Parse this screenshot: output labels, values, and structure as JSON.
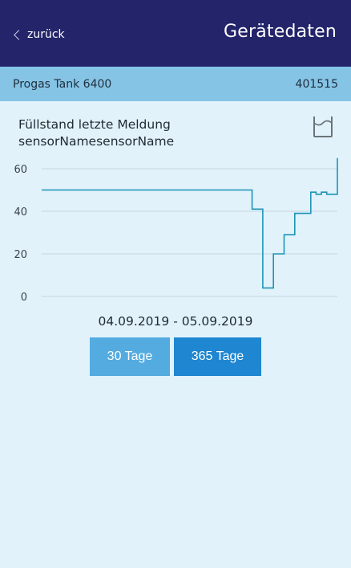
{
  "header": {
    "back_label": "zurück",
    "title": "Gerätedaten"
  },
  "device": {
    "name": "Progas Tank 6400",
    "id": "401515"
  },
  "chart_section": {
    "heading_line1": "Füllstand letzte Meldung",
    "heading_line2": "sensorNamesensorName",
    "icon": "tank-level-icon"
  },
  "chart_data": {
    "type": "line",
    "title": "",
    "xlabel": "",
    "ylabel": "",
    "ylim": [
      0,
      60
    ],
    "y_ticks": [
      "0",
      "20",
      "40",
      "60"
    ],
    "grid": true,
    "legend": "none",
    "color": "#1e93b8",
    "series": [
      {
        "values": [
          50,
          50,
          50,
          50,
          50,
          50,
          50,
          50,
          50,
          50,
          50,
          50,
          50,
          50,
          50,
          50,
          50,
          50,
          50,
          50,
          50,
          50,
          41,
          41,
          4,
          4,
          20,
          20,
          29,
          29,
          39,
          39,
          39,
          49,
          48,
          49,
          48,
          48,
          65
        ]
      }
    ]
  },
  "date_range": "04.09.2019 - 05.09.2019",
  "buttons": {
    "btn_30": "30 Tage",
    "btn_365": "365 Tage"
  },
  "colors": {
    "header": "#23246a",
    "device_bar": "#86c4e6",
    "background": "#e1f2fb",
    "button_30": "#54abe0",
    "button_365": "#1f86d1"
  }
}
